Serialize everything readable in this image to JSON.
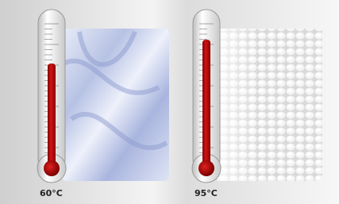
{
  "panels": [
    {
      "label": "60°C"
    },
    {
      "label": "95°C"
    }
  ]
}
